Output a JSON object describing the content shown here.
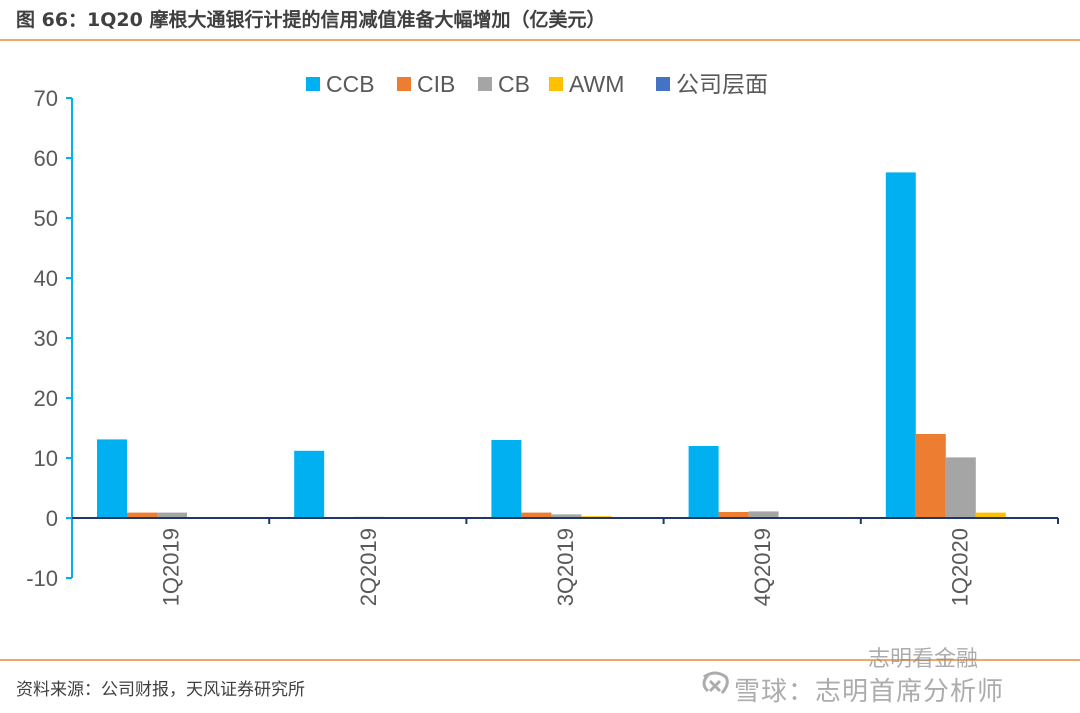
{
  "header": {
    "title": "图 66：1Q20 摩根大通银行计提的信用减值准备大幅增加（亿美元）"
  },
  "footer": {
    "source": "资料来源：公司财报，天风证券研究所"
  },
  "watermark": {
    "text": "雪球：志明首席分析师",
    "top_text": "志明看金融"
  },
  "chart_data": {
    "type": "bar",
    "categories": [
      "1Q2019",
      "2Q2019",
      "3Q2019",
      "4Q2019",
      "1Q2020"
    ],
    "series": [
      {
        "name": "CCB",
        "color": "#00B0F0",
        "values": [
          13.1,
          11.2,
          13.0,
          12.0,
          57.6
        ]
      },
      {
        "name": "CIB",
        "color": "#ED7D31",
        "values": [
          0.9,
          0.0,
          0.9,
          1.0,
          14.0
        ]
      },
      {
        "name": "CB",
        "color": "#A5A5A5",
        "values": [
          0.9,
          0.2,
          0.6,
          1.1,
          10.1
        ]
      },
      {
        "name": "AWM",
        "color": "#FFC000",
        "values": [
          0.0,
          0.0,
          0.3,
          0.0,
          0.9
        ]
      },
      {
        "name": "公司层面",
        "color": "#4472C4",
        "values": [
          0.0,
          0.0,
          0.0,
          0.0,
          0.0
        ]
      }
    ],
    "ylim": [
      -10,
      70
    ],
    "yticks": [
      -10,
      0,
      10,
      20,
      30,
      40,
      50,
      60,
      70
    ],
    "title": "",
    "xlabel": "",
    "ylabel": "",
    "legend_position": "top",
    "grid": false
  }
}
